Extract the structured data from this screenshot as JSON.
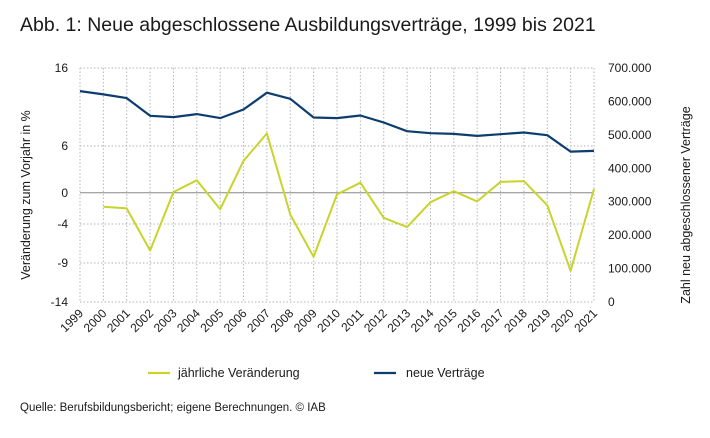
{
  "title": "Abb. 1: Neue abgeschlossene Ausbildungsverträge, 1999 bis 2021",
  "source": "Quelle: Berufsbildungsbericht; eigene Berechnungen. © IAB",
  "colors": {
    "change": "#c8d42c",
    "contracts": "#0d3d6e",
    "grid": "#b5b5b5",
    "zero": "#888888"
  },
  "chart_data": {
    "type": "line",
    "categories": [
      "1999",
      "2000",
      "2001",
      "2002",
      "2003",
      "2004",
      "2005",
      "2006",
      "2007",
      "2008",
      "2009",
      "2010",
      "2011",
      "2012",
      "2013",
      "2014",
      "2015",
      "2016",
      "2017",
      "2018",
      "2019",
      "2020",
      "2021"
    ],
    "y_left": {
      "label": "Veränderung zum Vorjahr in %",
      "ticks": [
        16,
        6,
        0,
        -4,
        -9,
        -14
      ],
      "tick_labels": [
        "16",
        "6",
        "0",
        "-4",
        "-9",
        "-14"
      ],
      "ylim": [
        -14,
        16
      ]
    },
    "y_right": {
      "label": "Zahl neu abgeschlossener Verträge",
      "ticks": [
        700000,
        600000,
        500000,
        400000,
        300000,
        200000,
        100000,
        0
      ],
      "tick_labels": [
        "700.000",
        "600.000",
        "500.000",
        "400.000",
        "300.000",
        "200.000",
        "100.000",
        "0"
      ],
      "ylim": [
        0,
        700000
      ]
    },
    "grid": true,
    "legend_position": "bottom",
    "series": [
      {
        "name": "jährliche Veränderung",
        "axis": "left",
        "color": "#c8d42c",
        "values": [
          null,
          -1.8,
          -2.0,
          -7.4,
          0.1,
          1.6,
          -2.1,
          4.1,
          7.6,
          -2.8,
          -8.2,
          -0.2,
          1.3,
          -3.2,
          -4.4,
          -1.2,
          0.2,
          -1.1,
          1.4,
          1.5,
          -1.6,
          -10.0,
          0.5
        ]
      },
      {
        "name": "neue Verträge",
        "axis": "right",
        "color": "#0d3d6e",
        "values": [
          631000,
          621000,
          610000,
          557000,
          553000,
          562000,
          550000,
          576000,
          626000,
          608000,
          552000,
          550000,
          558000,
          537000,
          511000,
          505000,
          503000,
          497000,
          502000,
          507000,
          499000,
          450000,
          452000
        ]
      }
    ]
  }
}
